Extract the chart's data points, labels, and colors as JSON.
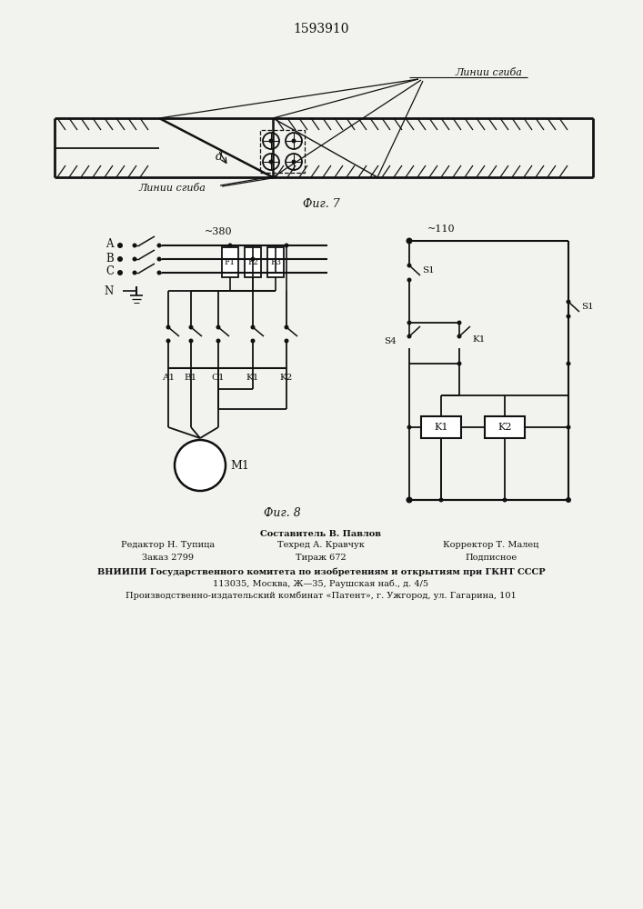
{
  "title": "1593910",
  "fig7_label": "Фиг. 7",
  "fig8_label": "Фиг. 8",
  "linii_sgiba_top": "Линии сгиба",
  "linii_sgiba_bot": "Линии сгиба",
  "label_d": "d",
  "label_380": "~380",
  "label_110": "~110",
  "label_A": "A",
  "label_B": "B",
  "label_C": "C",
  "label_N": "N",
  "label_F1": "F1",
  "label_F2": "F2",
  "label_F3": "F3",
  "label_A1": "A1",
  "label_B1": "B1",
  "label_C1": "C1",
  "label_K1c": "K1",
  "label_K2c": "K2",
  "label_S1t": "S1",
  "label_S4": "S4",
  "label_K1sw": "K1",
  "label_S1b": "S1",
  "label_K1coil": "K1",
  "label_K2coil": "K2",
  "label_M1": "M1",
  "footer_col1_line1": "Редактор Н. Тупица",
  "footer_col1_line2": "Заказ 2799",
  "footer_col2_line1": "Составитель В. Павлов",
  "footer_col2_line2": "Техред А. Кравчук",
  "footer_col2_line3": "Тираж 672",
  "footer_col3_line1": "Корректор Т. Малец",
  "footer_col3_line2": "Подписное",
  "footer_line1": "ВНИИПИ Государственного комитета по изобретениям и открытиям при ГКНТ СССР",
  "footer_line2": "113035, Москва, Ж—35, Раушская наб., д. 4/5",
  "footer_line3": "Производственно-издательский комбинат «Патент», г. Ужгород, ул. Гагарина, 101",
  "bg_color": "#f2f2ee",
  "line_color": "#111111"
}
